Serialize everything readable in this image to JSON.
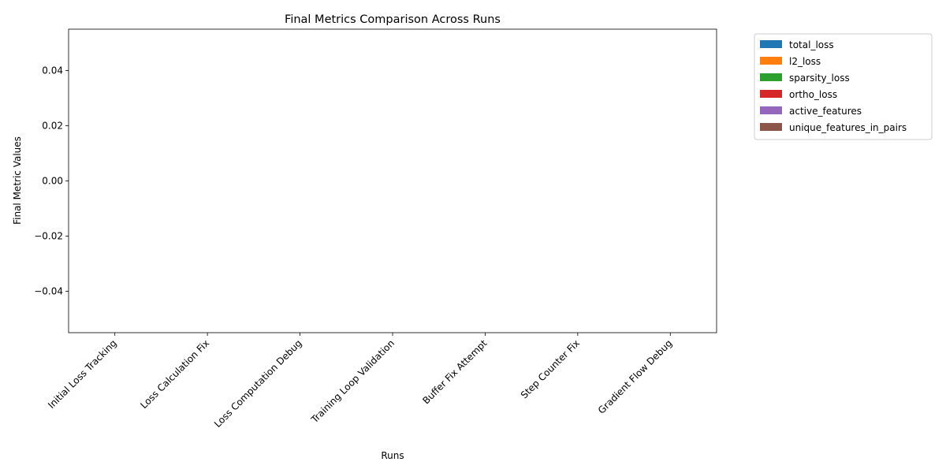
{
  "chart_data": {
    "type": "bar",
    "title": "Final Metrics Comparison Across Runs",
    "xlabel": "Runs",
    "ylabel": "Final Metric Values",
    "categories": [
      "Initial Loss Tracking",
      "Loss Calculation Fix",
      "Loss Computation Debug",
      "Training Loop Validation",
      "Buffer Fix Attempt",
      "Step Counter Fix",
      "Gradient Flow Debug"
    ],
    "series": [
      {
        "name": "total_loss",
        "color": "#1f77b4",
        "values": [
          0,
          0,
          0,
          0,
          0,
          0,
          0
        ]
      },
      {
        "name": "l2_loss",
        "color": "#ff7f0e",
        "values": [
          0,
          0,
          0,
          0,
          0,
          0,
          0
        ]
      },
      {
        "name": "sparsity_loss",
        "color": "#2ca02c",
        "values": [
          0,
          0,
          0,
          0,
          0,
          0,
          0
        ]
      },
      {
        "name": "ortho_loss",
        "color": "#d62728",
        "values": [
          0,
          0,
          0,
          0,
          0,
          0,
          0
        ]
      },
      {
        "name": "active_features",
        "color": "#9467bd",
        "values": [
          0,
          0,
          0,
          0,
          0,
          0,
          0
        ]
      },
      {
        "name": "unique_features_in_pairs",
        "color": "#8c564b",
        "values": [
          0,
          0,
          0,
          0,
          0,
          0,
          0
        ]
      }
    ],
    "ylim": [
      -0.055,
      0.055
    ],
    "yticks": [
      -0.04,
      -0.02,
      0.0,
      0.02,
      0.04
    ],
    "ytick_labels": [
      "−0.04",
      "−0.02",
      "0.00",
      "0.02",
      "0.04"
    ],
    "grid": false,
    "legend_position": "outside-top-right",
    "xtick_rotation": 45
  }
}
